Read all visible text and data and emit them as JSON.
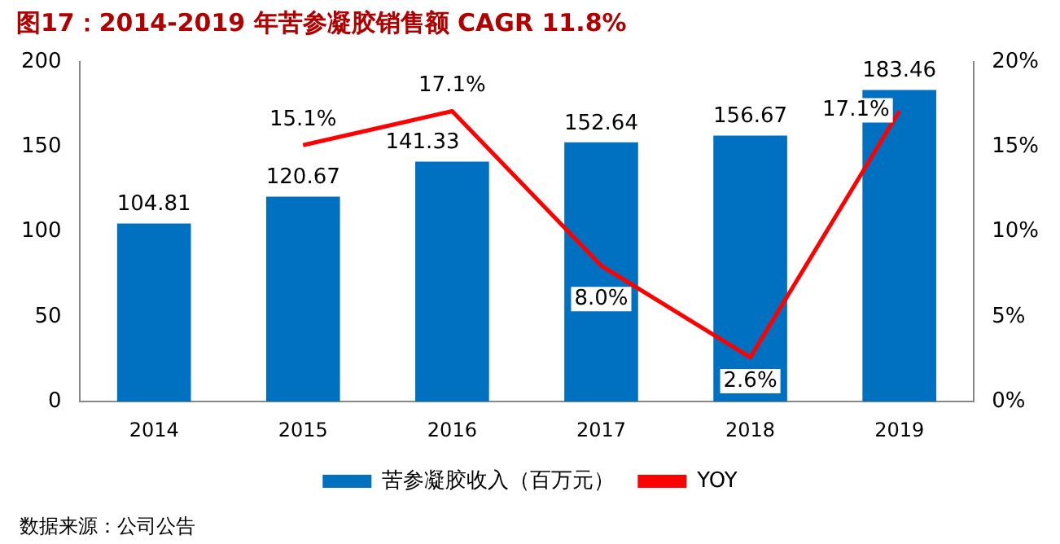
{
  "chart_data": {
    "type": "bar",
    "title": "图17：2014-2019 年苦参凝胶销售额 CAGR 11.8%",
    "categories": [
      "2014",
      "2015",
      "2016",
      "2017",
      "2018",
      "2019"
    ],
    "series": [
      {
        "name": "苦参凝胶收入（百万元）",
        "color": "#0070c0",
        "values": [
          104.81,
          120.67,
          141.33,
          152.64,
          156.67,
          183.46
        ],
        "value_labels": [
          "104.81",
          "120.67",
          "141.33",
          "152.64",
          "156.67",
          "183.46"
        ]
      },
      {
        "name": "YOY",
        "type": "line",
        "axis": "y2",
        "color": "#ff0000",
        "values": [
          null,
          15.1,
          17.1,
          8.0,
          2.6,
          17.1
        ],
        "value_labels": [
          null,
          "15.1%",
          "17.1%",
          "8.0%",
          "2.6%",
          "17.1%"
        ]
      }
    ],
    "ylim": [
      0,
      200
    ],
    "yticks": [
      0,
      50,
      100,
      150,
      200
    ],
    "y2lim": [
      0,
      20
    ],
    "y2ticks": [
      {
        "value": 0,
        "label": "0%"
      },
      {
        "value": 5,
        "label": "5%"
      },
      {
        "value": 10,
        "label": "10%"
      },
      {
        "value": 15,
        "label": "15%"
      },
      {
        "value": 20,
        "label": "20%"
      }
    ],
    "grid": false,
    "legend": "bottom",
    "marker": "none",
    "line_style": "solid",
    "annotations": [
      "数据来源：公司公告"
    ]
  }
}
